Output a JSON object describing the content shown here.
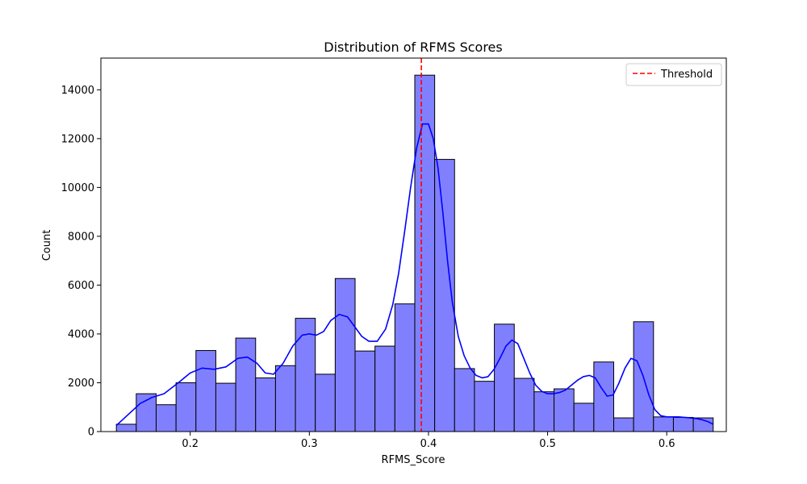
{
  "chart_data": {
    "type": "histogram",
    "title": "Distribution of RFMS Scores",
    "xlabel": "RFMS_Score",
    "ylabel": "Count",
    "xlim": [
      0.125,
      0.65
    ],
    "ylim": [
      0,
      15300
    ],
    "x_ticks": [
      0.2,
      0.3,
      0.4,
      0.5,
      0.6
    ],
    "x_tick_labels": [
      "0.2",
      "0.3",
      "0.4",
      "0.5",
      "0.6"
    ],
    "y_ticks": [
      0,
      2000,
      4000,
      6000,
      8000,
      10000,
      12000,
      14000
    ],
    "y_tick_labels": [
      "0",
      "2000",
      "4000",
      "6000",
      "8000",
      "10000",
      "12000",
      "14000"
    ],
    "grid": false,
    "bin_edges": [
      0.138,
      0.1547,
      0.1714,
      0.1881,
      0.2048,
      0.2215,
      0.2382,
      0.2549,
      0.2716,
      0.2883,
      0.305,
      0.3217,
      0.3384,
      0.3551,
      0.3718,
      0.3885,
      0.4052,
      0.4219,
      0.4386,
      0.4553,
      0.472,
      0.4887,
      0.5054,
      0.5221,
      0.5388,
      0.5555,
      0.5722,
      0.5889,
      0.6056,
      0.6223,
      0.639
    ],
    "counts": [
      300,
      1550,
      1100,
      2000,
      3320,
      1980,
      3830,
      2200,
      2700,
      4640,
      2350,
      6270,
      3300,
      3500,
      5230,
      14600,
      11150,
      2580,
      2060,
      4400,
      2180,
      1630,
      1750,
      1160,
      2850,
      560,
      4500,
      600,
      580,
      560
    ],
    "bar_color": "#8080ff",
    "bar_edge_color": "#000000",
    "kde": {
      "name": "",
      "color": "#0000ff",
      "x": [
        0.138,
        0.148,
        0.158,
        0.168,
        0.178,
        0.19,
        0.2,
        0.21,
        0.22,
        0.23,
        0.24,
        0.248,
        0.256,
        0.263,
        0.27,
        0.278,
        0.286,
        0.294,
        0.3,
        0.306,
        0.312,
        0.318,
        0.325,
        0.332,
        0.338,
        0.344,
        0.35,
        0.357,
        0.364,
        0.37,
        0.375,
        0.38,
        0.385,
        0.39,
        0.395,
        0.4,
        0.404,
        0.408,
        0.412,
        0.416,
        0.42,
        0.425,
        0.43,
        0.435,
        0.44,
        0.445,
        0.45,
        0.455,
        0.46,
        0.465,
        0.47,
        0.475,
        0.48,
        0.485,
        0.49,
        0.495,
        0.5,
        0.505,
        0.51,
        0.515,
        0.52,
        0.525,
        0.53,
        0.535,
        0.54,
        0.545,
        0.55,
        0.555,
        0.56,
        0.565,
        0.57,
        0.575,
        0.58,
        0.585,
        0.59,
        0.595,
        0.6,
        0.605,
        0.61,
        0.615,
        0.62,
        0.625,
        0.63,
        0.635,
        0.639
      ],
      "y": [
        250,
        700,
        1150,
        1400,
        1550,
        2000,
        2400,
        2600,
        2550,
        2650,
        3000,
        3050,
        2800,
        2400,
        2350,
        2800,
        3500,
        3950,
        4000,
        3950,
        4100,
        4550,
        4800,
        4700,
        4300,
        3900,
        3700,
        3700,
        4200,
        5200,
        6500,
        8200,
        10000,
        11600,
        12600,
        12600,
        12000,
        10800,
        9000,
        7000,
        5300,
        3900,
        3100,
        2600,
        2300,
        2200,
        2250,
        2550,
        3000,
        3500,
        3750,
        3600,
        3000,
        2400,
        1900,
        1650,
        1550,
        1550,
        1600,
        1700,
        1900,
        2100,
        2250,
        2300,
        2200,
        1800,
        1450,
        1500,
        2000,
        2600,
        3000,
        2900,
        2300,
        1500,
        900,
        650,
        600,
        600,
        600,
        580,
        560,
        530,
        480,
        400,
        300
      ]
    },
    "threshold": {
      "x": 0.394,
      "color": "#ff0000",
      "legend_label": "Threshold"
    },
    "legend_position": "top-right"
  }
}
